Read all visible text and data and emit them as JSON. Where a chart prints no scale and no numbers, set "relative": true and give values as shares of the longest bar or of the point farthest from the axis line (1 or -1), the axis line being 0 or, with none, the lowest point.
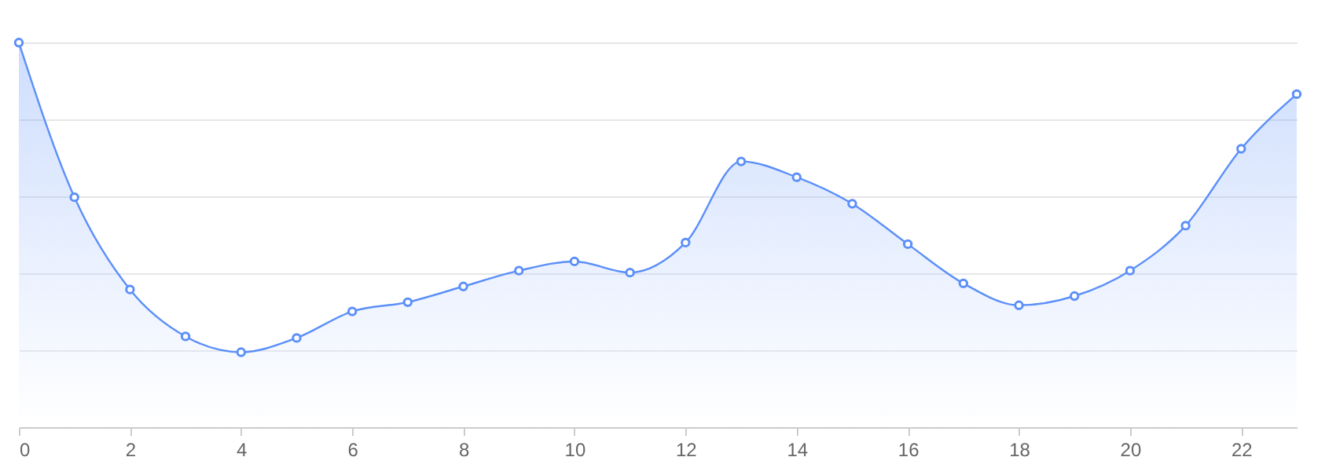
{
  "chart_data": {
    "type": "area",
    "relative": true,
    "x": [
      0,
      1,
      2,
      3,
      4,
      5,
      6,
      7,
      8,
      9,
      10,
      11,
      12,
      13,
      14,
      15,
      16,
      17,
      18,
      19,
      20,
      21,
      22,
      23
    ],
    "series": [
      {
        "color": "#5b8ff9",
        "values": [
          1,
          0.598,
          0.358,
          0.236,
          0.195,
          0.232,
          0.301,
          0.325,
          0.366,
          0.407,
          0.431,
          0.402,
          0.48,
          0.691,
          0.65,
          0.581,
          0.476,
          0.374,
          0.317,
          0.341,
          0.407,
          0.524,
          0.724,
          0.866
        ]
      }
    ],
    "xlim": [
      0,
      23
    ],
    "xticks": [
      0,
      2,
      4,
      6,
      8,
      10,
      12,
      14,
      16,
      18,
      20,
      22
    ],
    "grid": "y",
    "marker": "circle",
    "line_style": "solid",
    "tick_labels": "x"
  }
}
